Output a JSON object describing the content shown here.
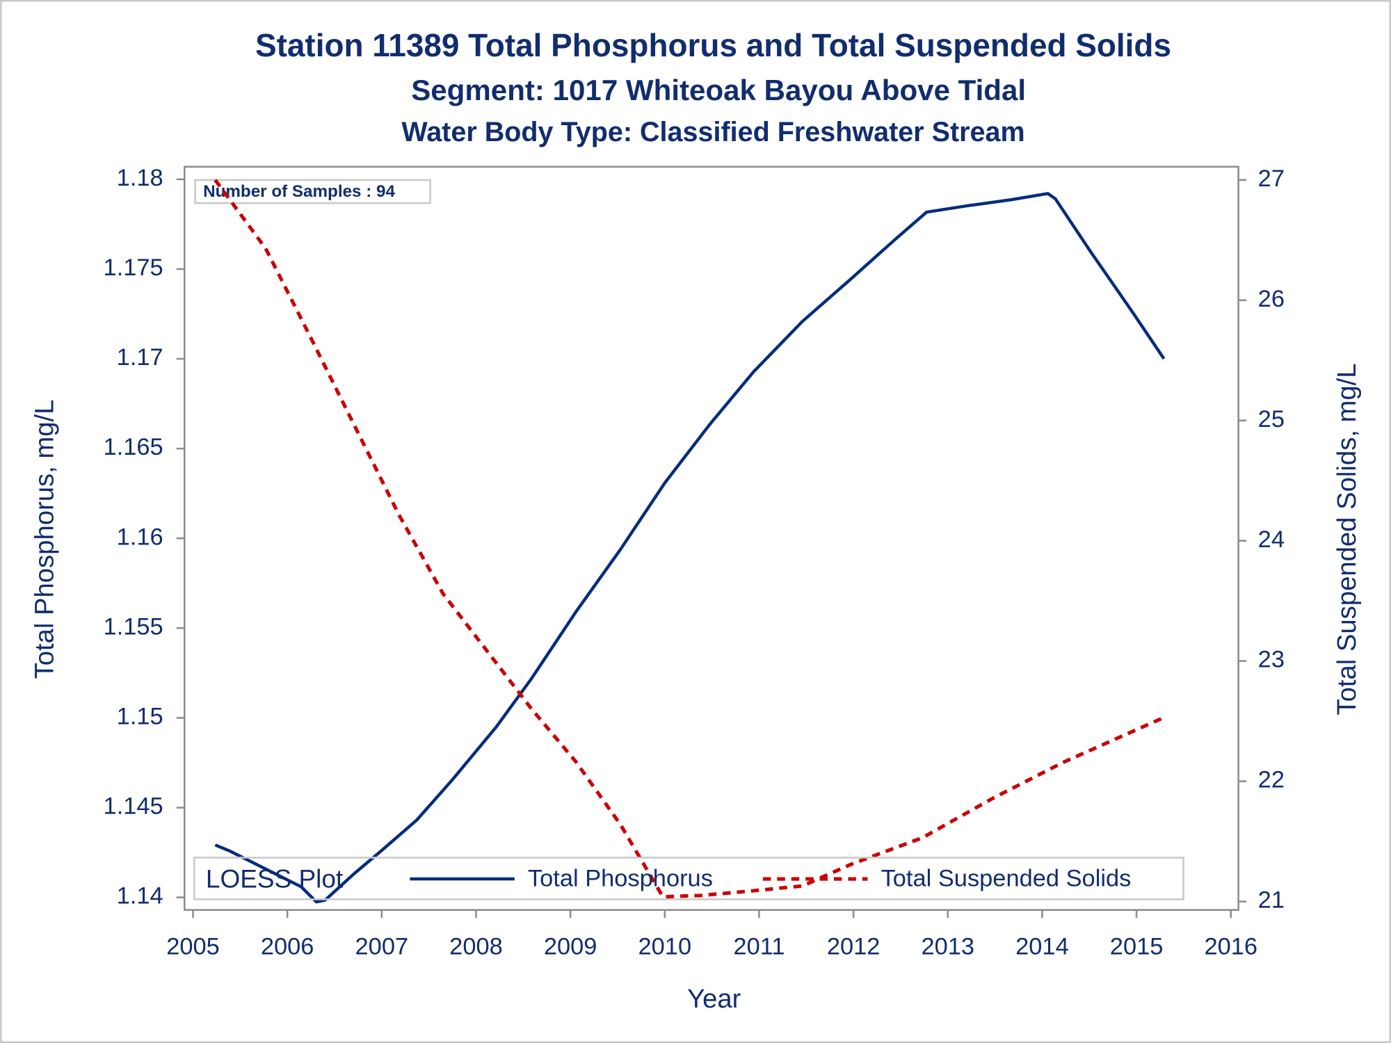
{
  "chart_data": {
    "type": "line",
    "title": "Station 11389  Total Phosphorus and Total Suspended Solids",
    "subtitle": "Segment: 1017  Whiteoak Bayou Above Tidal",
    "subtitle2": "Water Body Type: Classified Freshwater Stream",
    "annotation": "Number of Samples : 94",
    "x_label": "Year",
    "y_label": "Total Phosphorus, mg/L",
    "y2_label": "Total Suspended Solids, mg/L",
    "legend_title": "LOESS Plot",
    "legend_position": "bottom",
    "xlim": [
      2004.91,
      2016.08
    ],
    "xticks": [
      2005,
      2006,
      2007,
      2008,
      2009,
      2010,
      2011,
      2012,
      2013,
      2014,
      2015,
      2016
    ],
    "ylim": [
      1.1393,
      1.1807
    ],
    "yticks": [
      1.14,
      1.145,
      1.15,
      1.155,
      1.16,
      1.165,
      1.17,
      1.175,
      1.18
    ],
    "y2lim": [
      20.93,
      27.11
    ],
    "y2ticks": [
      21,
      22,
      23,
      24,
      25,
      26,
      27
    ],
    "series": [
      {
        "name": "Total Phosphorus",
        "color": "#062c7c",
        "dash": false,
        "axis": "y",
        "x": [
          2005.235,
          2005.395,
          2005.77,
          2006.147,
          2006.307,
          2006.4,
          2006.71,
          2006.99,
          2007.37,
          2007.745,
          2008.215,
          2008.59,
          2009.06,
          2009.53,
          2010.0,
          2010.47,
          2010.94,
          2011.46,
          2011.975,
          2012.45,
          2012.775,
          2013.2,
          2013.67,
          2014.06,
          2014.14,
          2014.515,
          2014.94,
          2015.29
        ],
        "values": [
          1.14292,
          1.14257,
          1.14158,
          1.14059,
          1.13975,
          1.13985,
          1.14133,
          1.14257,
          1.1443,
          1.14653,
          1.1495,
          1.15221,
          1.15592,
          1.15938,
          1.16309,
          1.1663,
          1.16927,
          1.17209,
          1.17446,
          1.17669,
          1.17817,
          1.17852,
          1.17886,
          1.17921,
          1.17891,
          1.17595,
          1.17273,
          1.17001
        ]
      },
      {
        "name": "Total Suspended Solids",
        "color": "#cc0000",
        "dash": true,
        "axis": "y2",
        "x": [
          2005.235,
          2005.77,
          2006.24,
          2006.71,
          2007.18,
          2007.65,
          2008.12,
          2008.59,
          2009.06,
          2009.53,
          2009.98,
          2010.38,
          2010.94,
          2011.46,
          2011.975,
          2012.73,
          2013.48,
          2014.23,
          2015.29
        ],
        "values": [
          27.0,
          26.43,
          25.7,
          24.96,
          24.22,
          23.56,
          23.08,
          22.6,
          22.16,
          21.64,
          21.04,
          21.05,
          21.09,
          21.13,
          21.31,
          21.53,
          21.86,
          22.16,
          22.53
        ]
      }
    ]
  }
}
